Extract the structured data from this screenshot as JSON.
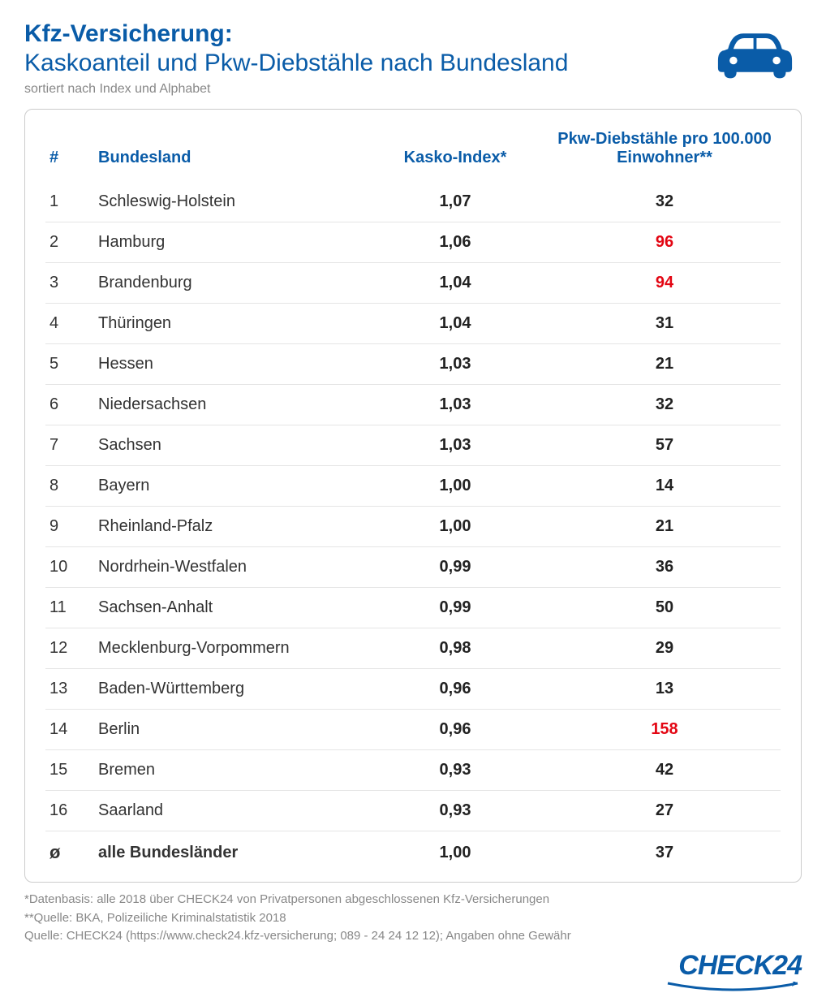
{
  "header": {
    "title_bold": "Kfz-Versicherung:",
    "title_rest": "Kaskoanteil und Pkw-Diebstähle nach Bundesland",
    "subtitle": "sortiert nach Index und Alphabet"
  },
  "colors": {
    "primary": "#0a5ca8",
    "highlight": "#e30613",
    "text": "#333333",
    "muted": "#888888",
    "border": "#cccccc",
    "row_border": "#e5e5e5"
  },
  "icon": {
    "name": "car-icon",
    "color": "#0a5ca8"
  },
  "table": {
    "columns": [
      {
        "key": "num",
        "label": "#"
      },
      {
        "key": "state",
        "label": "Bundesland"
      },
      {
        "key": "kasko",
        "label": "Kasko-Index*"
      },
      {
        "key": "theft",
        "label": "Pkw-Diebstähle pro 100.000 Einwohner**"
      }
    ],
    "rows": [
      {
        "num": "1",
        "state": "Schleswig-Holstein",
        "kasko": "1,07",
        "theft": "32",
        "highlight": false
      },
      {
        "num": "2",
        "state": "Hamburg",
        "kasko": "1,06",
        "theft": "96",
        "highlight": true
      },
      {
        "num": "3",
        "state": "Brandenburg",
        "kasko": "1,04",
        "theft": "94",
        "highlight": true
      },
      {
        "num": "4",
        "state": "Thüringen",
        "kasko": "1,04",
        "theft": "31",
        "highlight": false
      },
      {
        "num": "5",
        "state": "Hessen",
        "kasko": "1,03",
        "theft": "21",
        "highlight": false
      },
      {
        "num": "6",
        "state": "Niedersachsen",
        "kasko": "1,03",
        "theft": "32",
        "highlight": false
      },
      {
        "num": "7",
        "state": "Sachsen",
        "kasko": "1,03",
        "theft": "57",
        "highlight": false
      },
      {
        "num": "8",
        "state": "Bayern",
        "kasko": "1,00",
        "theft": "14",
        "highlight": false
      },
      {
        "num": "9",
        "state": "Rheinland-Pfalz",
        "kasko": "1,00",
        "theft": "21",
        "highlight": false
      },
      {
        "num": "10",
        "state": "Nordrhein-Westfalen",
        "kasko": "0,99",
        "theft": "36",
        "highlight": false
      },
      {
        "num": "11",
        "state": "Sachsen-Anhalt",
        "kasko": "0,99",
        "theft": "50",
        "highlight": false
      },
      {
        "num": "12",
        "state": "Mecklenburg-Vorpommern",
        "kasko": "0,98",
        "theft": "29",
        "highlight": false
      },
      {
        "num": "13",
        "state": "Baden-Württemberg",
        "kasko": "0,96",
        "theft": "13",
        "highlight": false
      },
      {
        "num": "14",
        "state": "Berlin",
        "kasko": "0,96",
        "theft": "158",
        "highlight": true
      },
      {
        "num": "15",
        "state": "Bremen",
        "kasko": "0,93",
        "theft": "42",
        "highlight": false
      },
      {
        "num": "16",
        "state": "Saarland",
        "kasko": "0,93",
        "theft": "27",
        "highlight": false
      }
    ],
    "summary": {
      "num": "ø",
      "state": "alle Bundesländer",
      "kasko": "1,00",
      "theft": "37"
    }
  },
  "footnotes": {
    "line1": "*Datenbasis: alle 2018 über CHECK24 von Privatpersonen abgeschlossenen Kfz-Versicherungen",
    "line2": "**Quelle: BKA, Polizeiliche Kriminalstatistik 2018",
    "line3": "Quelle: CHECK24 (https://www.check24.kfz-versicherung; 089 - 24 24 12 12); Angaben ohne Gewähr"
  },
  "logo": {
    "text": "CHECK24"
  }
}
